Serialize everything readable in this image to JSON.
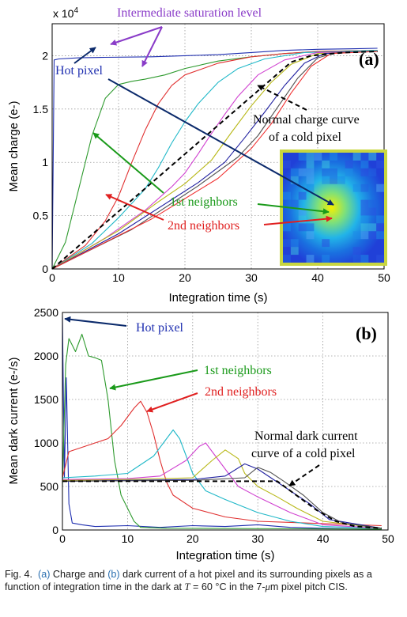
{
  "colors": {
    "hot": "#1f2fb0",
    "first": "#1a9a1a",
    "second": "#e02020",
    "cold": "#000000",
    "purple": "#8a3cc8",
    "navy": "#0b2a6b",
    "captionBlue": "#2a6fb0"
  },
  "chart_data": [
    {
      "panel_label": "(a)",
      "type": "line",
      "xlabel": "Integration time (s)",
      "ylabel": "Mean charge (e-)",
      "xlim": [
        0,
        50
      ],
      "ylim": [
        0,
        23000
      ],
      "y_multiplier": "x 10",
      "y_exponent": "4",
      "xticks": [
        0,
        10,
        20,
        30,
        40,
        50
      ],
      "yticks": [
        0,
        5000,
        10000,
        15000,
        20000
      ],
      "ytick_labels": [
        "0",
        "0.5",
        "1",
        "1.5",
        "2"
      ],
      "grid": true,
      "annotations": {
        "saturation": "Intermediate saturation level",
        "hot": "Hot pixel",
        "cold_line1": "Normal charge curve",
        "cold_line2": "of a cold pixel",
        "first": "1st neighbors",
        "second": "2nd neighbors"
      },
      "series": [
        {
          "color": "#1f2fb0",
          "points": [
            [
              0,
              0
            ],
            [
              0.3,
              19600
            ],
            [
              1,
              19700
            ],
            [
              4,
              19800
            ],
            [
              8,
              19850
            ],
            [
              15,
              19900
            ],
            [
              20,
              20000
            ],
            [
              25,
              20100
            ],
            [
              30,
              20300
            ],
            [
              35,
              20500
            ],
            [
              40,
              20600
            ],
            [
              45,
              20650
            ],
            [
              49,
              20700
            ]
          ]
        },
        {
          "color": "#2e9a2e",
          "points": [
            [
              0,
              0
            ],
            [
              2,
              2500
            ],
            [
              4,
              7500
            ],
            [
              6,
              12500
            ],
            [
              8,
              16000
            ],
            [
              10,
              17300
            ],
            [
              12,
              17600
            ],
            [
              14,
              17800
            ],
            [
              17,
              18200
            ],
            [
              20,
              18800
            ],
            [
              25,
              19500
            ],
            [
              30,
              19900
            ],
            [
              35,
              20200
            ],
            [
              40,
              20400
            ],
            [
              49,
              20500
            ]
          ]
        },
        {
          "color": "#e03030",
          "points": [
            [
              0,
              0
            ],
            [
              5,
              2200
            ],
            [
              8,
              4500
            ],
            [
              10,
              6800
            ],
            [
              12,
              10000
            ],
            [
              14,
              13000
            ],
            [
              16,
              15500
            ],
            [
              18,
              17200
            ],
            [
              20,
              18200
            ],
            [
              25,
              19300
            ],
            [
              30,
              19900
            ],
            [
              35,
              20200
            ],
            [
              40,
              20400
            ],
            [
              49,
              20500
            ]
          ]
        },
        {
          "color": "#20b8c8",
          "points": [
            [
              0,
              0
            ],
            [
              6,
              2400
            ],
            [
              10,
              4800
            ],
            [
              14,
              7500
            ],
            [
              16,
              9500
            ],
            [
              18,
              11800
            ],
            [
              20,
              13800
            ],
            [
              22,
              15500
            ],
            [
              25,
              17500
            ],
            [
              28,
              18800
            ],
            [
              32,
              19700
            ],
            [
              38,
              20300
            ],
            [
              49,
              20500
            ]
          ]
        },
        {
          "color": "#d040d0",
          "points": [
            [
              0,
              0
            ],
            [
              8,
              2900
            ],
            [
              14,
              5500
            ],
            [
              18,
              7700
            ],
            [
              20,
              9000
            ],
            [
              22,
              10800
            ],
            [
              24,
              12700
            ],
            [
              26,
              14500
            ],
            [
              28,
              16200
            ],
            [
              31,
              18200
            ],
            [
              35,
              19600
            ],
            [
              40,
              20300
            ],
            [
              49,
              20400
            ]
          ]
        },
        {
          "color": "#b8b818",
          "points": [
            [
              0,
              0
            ],
            [
              10,
              3600
            ],
            [
              16,
              6300
            ],
            [
              20,
              8000
            ],
            [
              24,
              10200
            ],
            [
              27,
              12800
            ],
            [
              30,
              15300
            ],
            [
              33,
              17500
            ],
            [
              36,
              19200
            ],
            [
              40,
              20200
            ],
            [
              49,
              20400
            ]
          ]
        },
        {
          "color": "#2020a0",
          "points": [
            [
              0,
              0
            ],
            [
              10,
              3300
            ],
            [
              18,
              6500
            ],
            [
              22,
              8100
            ],
            [
              26,
              10000
            ],
            [
              29,
              12300
            ],
            [
              32,
              14700
            ],
            [
              35,
              17200
            ],
            [
              38,
              19300
            ],
            [
              41,
              20200
            ],
            [
              49,
              20400
            ]
          ]
        },
        {
          "color": "#505050",
          "points": [
            [
              0,
              0
            ],
            [
              12,
              3700
            ],
            [
              22,
              7800
            ],
            [
              28,
              10500
            ],
            [
              31,
              12500
            ],
            [
              34,
              15200
            ],
            [
              37,
              17900
            ],
            [
              40,
              19800
            ],
            [
              43,
              20300
            ],
            [
              49,
              20400
            ]
          ]
        },
        {
          "color": "#f03030",
          "points": [
            [
              0,
              0
            ],
            [
              15,
              4700
            ],
            [
              25,
              8500
            ],
            [
              30,
              11300
            ],
            [
              33,
              13600
            ],
            [
              36,
              16500
            ],
            [
              39,
              19000
            ],
            [
              42,
              20200
            ],
            [
              49,
              20400
            ]
          ]
        },
        {
          "color": "#000000",
          "dashed": true,
          "points": [
            [
              0,
              0
            ],
            [
              36,
              19400
            ],
            [
              39,
              20000
            ],
            [
              44,
              20300
            ],
            [
              49,
              20400
            ]
          ]
        }
      ]
    },
    {
      "panel_label": "(b)",
      "type": "line",
      "xlabel": "Integration time (s)",
      "ylabel": "Mean dark current (e-/s)",
      "xlim": [
        0,
        50
      ],
      "ylim": [
        0,
        2500
      ],
      "xticks": [
        0,
        10,
        20,
        30,
        40,
        50
      ],
      "yticks": [
        0,
        500,
        1000,
        1500,
        2000,
        2500
      ],
      "grid": true,
      "annotations": {
        "hot": "Hot pixel",
        "first": "1st neighbors",
        "second": "2nd neighbors",
        "cold_line1": "Normal dark current",
        "cold_line2": "curve of a cold pixel"
      },
      "series": [
        {
          "color": "#1f2fb0",
          "points": [
            [
              0,
              2450
            ],
            [
              0.3,
              600
            ],
            [
              0.6,
              1750
            ],
            [
              1,
              300
            ],
            [
              1.5,
              80
            ],
            [
              3,
              60
            ],
            [
              5,
              40
            ],
            [
              10,
              50
            ],
            [
              15,
              30
            ],
            [
              20,
              50
            ],
            [
              25,
              40
            ],
            [
              30,
              60
            ],
            [
              35,
              30
            ],
            [
              40,
              20
            ],
            [
              49,
              10
            ]
          ]
        },
        {
          "color": "#2e9a2e",
          "points": [
            [
              0,
              500
            ],
            [
              0.5,
              1900
            ],
            [
              1,
              2200
            ],
            [
              2,
              2050
            ],
            [
              3,
              2250
            ],
            [
              4,
              2000
            ],
            [
              5,
              1980
            ],
            [
              6,
              1950
            ],
            [
              7,
              1500
            ],
            [
              8,
              800
            ],
            [
              9,
              400
            ],
            [
              10,
              250
            ],
            [
              11,
              100
            ],
            [
              12,
              30
            ],
            [
              16,
              20
            ],
            [
              49,
              10
            ]
          ]
        },
        {
          "color": "#e03030",
          "points": [
            [
              0,
              600
            ],
            [
              1,
              900
            ],
            [
              3,
              950
            ],
            [
              5,
              1000
            ],
            [
              7,
              1050
            ],
            [
              9,
              1200
            ],
            [
              11,
              1400
            ],
            [
              12,
              1480
            ],
            [
              13,
              1350
            ],
            [
              14,
              1100
            ],
            [
              15,
              800
            ],
            [
              16,
              550
            ],
            [
              17,
              400
            ],
            [
              20,
              250
            ],
            [
              25,
              150
            ],
            [
              30,
              100
            ],
            [
              49,
              50
            ]
          ]
        },
        {
          "color": "#20b8c8",
          "points": [
            [
              0,
              600
            ],
            [
              5,
              620
            ],
            [
              10,
              650
            ],
            [
              14,
              850
            ],
            [
              16,
              1050
            ],
            [
              17,
              1150
            ],
            [
              18,
              1050
            ],
            [
              19,
              850
            ],
            [
              20,
              650
            ],
            [
              22,
              450
            ],
            [
              25,
              350
            ],
            [
              30,
              200
            ],
            [
              35,
              100
            ],
            [
              40,
              40
            ],
            [
              49,
              20
            ]
          ]
        },
        {
          "color": "#d040d0",
          "points": [
            [
              0,
              580
            ],
            [
              10,
              590
            ],
            [
              15,
              620
            ],
            [
              19,
              800
            ],
            [
              21,
              960
            ],
            [
              22,
              1000
            ],
            [
              23,
              900
            ],
            [
              25,
              700
            ],
            [
              27,
              500
            ],
            [
              30,
              380
            ],
            [
              35,
              200
            ],
            [
              40,
              60
            ],
            [
              49,
              20
            ]
          ]
        },
        {
          "color": "#b8b818",
          "points": [
            [
              0,
              570
            ],
            [
              10,
              580
            ],
            [
              20,
              600
            ],
            [
              23,
              800
            ],
            [
              25,
              920
            ],
            [
              27,
              820
            ],
            [
              28,
              650
            ],
            [
              30,
              500
            ],
            [
              33,
              380
            ],
            [
              36,
              250
            ],
            [
              40,
              100
            ],
            [
              49,
              20
            ]
          ]
        },
        {
          "color": "#2020a0",
          "points": [
            [
              0,
              560
            ],
            [
              10,
              570
            ],
            [
              20,
              580
            ],
            [
              25,
              620
            ],
            [
              28,
              760
            ],
            [
              30,
              700
            ],
            [
              32,
              600
            ],
            [
              35,
              450
            ],
            [
              38,
              300
            ],
            [
              41,
              120
            ],
            [
              49,
              20
            ]
          ]
        },
        {
          "color": "#505050",
          "points": [
            [
              0,
              560
            ],
            [
              20,
              570
            ],
            [
              28,
              600
            ],
            [
              30,
              720
            ],
            [
              32,
              660
            ],
            [
              34,
              560
            ],
            [
              37,
              400
            ],
            [
              40,
              200
            ],
            [
              43,
              80
            ],
            [
              49,
              20
            ]
          ]
        },
        {
          "color": "#000000",
          "dashed": true,
          "points": [
            [
              0,
              560
            ],
            [
              33,
              560
            ],
            [
              39,
              230
            ],
            [
              42,
              100
            ],
            [
              45,
              40
            ],
            [
              49,
              20
            ]
          ]
        }
      ]
    }
  ],
  "caption": {
    "prefix": "Fig. 4.",
    "a_label": "(a)",
    "part1": " Charge and ",
    "b_label": "(b)",
    "part2": " dark current of a hot pixel and its surrounding pixels as a function of integration time in the dark at ",
    "T": "T",
    "part3": " = 60 °C in the 7-",
    "mu": "μ",
    "part4": "m pixel pitch CIS."
  }
}
